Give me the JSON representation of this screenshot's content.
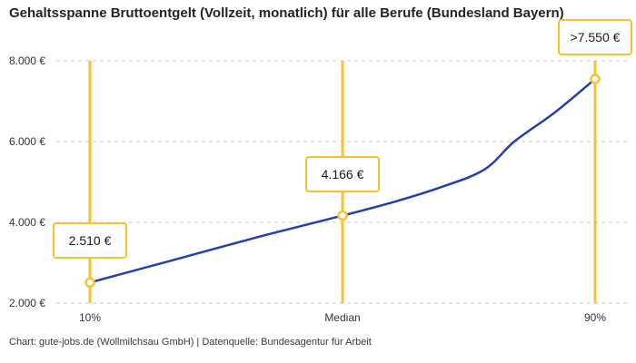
{
  "title": "Gehaltsspanne Bruttoentgelt (Vollzeit, monatlich) für alle Berufe (Bundesland Bayern)",
  "footer": "Chart: gute-jobs.de (Wollmilchsau GmbH) | Datenquelle: Bundesagentur für Arbeit",
  "colors": {
    "accent_yellow": "#F5C32B",
    "line_blue": "#2240A8",
    "grid_gray": "#C9C9C9",
    "text_dark": "#242424",
    "tick_text": "#333333"
  },
  "chart_data": {
    "type": "line",
    "title": "Gehaltsspanne Bruttoentgelt (Vollzeit, monatlich) für alle Berufe (Bundesland Bayern)",
    "source": "Chart: gute-jobs.de (Wollmilchsau GmbH) | Datenquelle: Bundesagentur für Arbeit",
    "xlabel": "",
    "ylabel": "",
    "ylim": [
      2000,
      8000
    ],
    "grid": "horizontal-dashed",
    "legend": "none",
    "categories": [
      "10%",
      "Median",
      "90%"
    ],
    "values": [
      2510,
      4166,
      7550
    ],
    "points": [
      {
        "axis_label": "10%",
        "value": 2510,
        "value_label": "2.510 €",
        "f": 0.0
      },
      {
        "axis_label": "Median",
        "value": 4166,
        "value_label": "4.166 €",
        "f": 0.5
      },
      {
        "axis_label": "90%",
        "value": 7550,
        "value_label": ">7.550 €",
        "f": 1.0
      }
    ],
    "yticks": [
      {
        "label": "8.000 €",
        "value": 8000
      },
      {
        "label": "6.000 €",
        "value": 6000
      },
      {
        "label": "4.000 €",
        "value": 4000
      },
      {
        "label": "2.000 €",
        "value": 2000
      }
    ],
    "curve_samples": [
      {
        "f": 0.0,
        "value": 2510
      },
      {
        "f": 0.16,
        "value": 3050
      },
      {
        "f": 0.34,
        "value": 3660
      },
      {
        "f": 0.5,
        "value": 4166
      },
      {
        "f": 0.6,
        "value": 4500
      },
      {
        "f": 0.69,
        "value": 4850
      },
      {
        "f": 0.78,
        "value": 5300
      },
      {
        "f": 0.84,
        "value": 6000
      },
      {
        "f": 0.92,
        "value": 6720
      },
      {
        "f": 1.0,
        "value": 7550
      }
    ]
  }
}
